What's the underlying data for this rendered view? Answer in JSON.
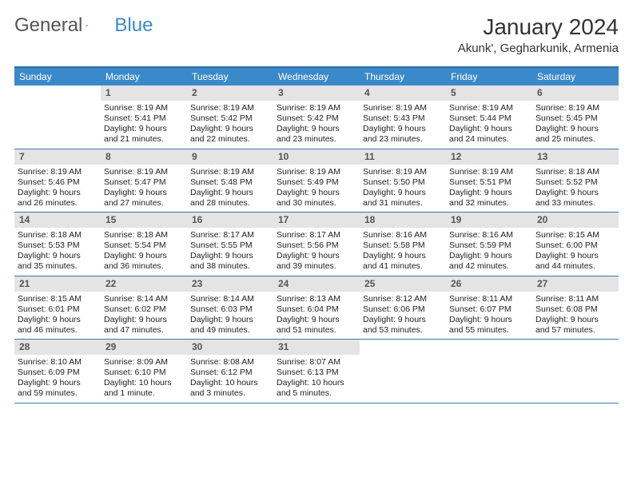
{
  "logo": {
    "word1": "General",
    "word2": "Blue"
  },
  "title": "January 2024",
  "location": "Akunk', Gegharkunik, Armenia",
  "colors": {
    "header_bg": "#3a8ac9",
    "rule": "#3a78a8",
    "daynum_bg": "#e4e4e4",
    "text": "#333333"
  },
  "weekdays": [
    "Sunday",
    "Monday",
    "Tuesday",
    "Wednesday",
    "Thursday",
    "Friday",
    "Saturday"
  ],
  "weeks": [
    [
      null,
      {
        "d": "1",
        "sr": "8:19 AM",
        "ss": "5:41 PM",
        "dl": "9 hours and 21 minutes."
      },
      {
        "d": "2",
        "sr": "8:19 AM",
        "ss": "5:42 PM",
        "dl": "9 hours and 22 minutes."
      },
      {
        "d": "3",
        "sr": "8:19 AM",
        "ss": "5:42 PM",
        "dl": "9 hours and 23 minutes."
      },
      {
        "d": "4",
        "sr": "8:19 AM",
        "ss": "5:43 PM",
        "dl": "9 hours and 23 minutes."
      },
      {
        "d": "5",
        "sr": "8:19 AM",
        "ss": "5:44 PM",
        "dl": "9 hours and 24 minutes."
      },
      {
        "d": "6",
        "sr": "8:19 AM",
        "ss": "5:45 PM",
        "dl": "9 hours and 25 minutes."
      }
    ],
    [
      {
        "d": "7",
        "sr": "8:19 AM",
        "ss": "5:46 PM",
        "dl": "9 hours and 26 minutes."
      },
      {
        "d": "8",
        "sr": "8:19 AM",
        "ss": "5:47 PM",
        "dl": "9 hours and 27 minutes."
      },
      {
        "d": "9",
        "sr": "8:19 AM",
        "ss": "5:48 PM",
        "dl": "9 hours and 28 minutes."
      },
      {
        "d": "10",
        "sr": "8:19 AM",
        "ss": "5:49 PM",
        "dl": "9 hours and 30 minutes."
      },
      {
        "d": "11",
        "sr": "8:19 AM",
        "ss": "5:50 PM",
        "dl": "9 hours and 31 minutes."
      },
      {
        "d": "12",
        "sr": "8:19 AM",
        "ss": "5:51 PM",
        "dl": "9 hours and 32 minutes."
      },
      {
        "d": "13",
        "sr": "8:18 AM",
        "ss": "5:52 PM",
        "dl": "9 hours and 33 minutes."
      }
    ],
    [
      {
        "d": "14",
        "sr": "8:18 AM",
        "ss": "5:53 PM",
        "dl": "9 hours and 35 minutes."
      },
      {
        "d": "15",
        "sr": "8:18 AM",
        "ss": "5:54 PM",
        "dl": "9 hours and 36 minutes."
      },
      {
        "d": "16",
        "sr": "8:17 AM",
        "ss": "5:55 PM",
        "dl": "9 hours and 38 minutes."
      },
      {
        "d": "17",
        "sr": "8:17 AM",
        "ss": "5:56 PM",
        "dl": "9 hours and 39 minutes."
      },
      {
        "d": "18",
        "sr": "8:16 AM",
        "ss": "5:58 PM",
        "dl": "9 hours and 41 minutes."
      },
      {
        "d": "19",
        "sr": "8:16 AM",
        "ss": "5:59 PM",
        "dl": "9 hours and 42 minutes."
      },
      {
        "d": "20",
        "sr": "8:15 AM",
        "ss": "6:00 PM",
        "dl": "9 hours and 44 minutes."
      }
    ],
    [
      {
        "d": "21",
        "sr": "8:15 AM",
        "ss": "6:01 PM",
        "dl": "9 hours and 46 minutes."
      },
      {
        "d": "22",
        "sr": "8:14 AM",
        "ss": "6:02 PM",
        "dl": "9 hours and 47 minutes."
      },
      {
        "d": "23",
        "sr": "8:14 AM",
        "ss": "6:03 PM",
        "dl": "9 hours and 49 minutes."
      },
      {
        "d": "24",
        "sr": "8:13 AM",
        "ss": "6:04 PM",
        "dl": "9 hours and 51 minutes."
      },
      {
        "d": "25",
        "sr": "8:12 AM",
        "ss": "6:06 PM",
        "dl": "9 hours and 53 minutes."
      },
      {
        "d": "26",
        "sr": "8:11 AM",
        "ss": "6:07 PM",
        "dl": "9 hours and 55 minutes."
      },
      {
        "d": "27",
        "sr": "8:11 AM",
        "ss": "6:08 PM",
        "dl": "9 hours and 57 minutes."
      }
    ],
    [
      {
        "d": "28",
        "sr": "8:10 AM",
        "ss": "6:09 PM",
        "dl": "9 hours and 59 minutes."
      },
      {
        "d": "29",
        "sr": "8:09 AM",
        "ss": "6:10 PM",
        "dl": "10 hours and 1 minute."
      },
      {
        "d": "30",
        "sr": "8:08 AM",
        "ss": "6:12 PM",
        "dl": "10 hours and 3 minutes."
      },
      {
        "d": "31",
        "sr": "8:07 AM",
        "ss": "6:13 PM",
        "dl": "10 hours and 5 minutes."
      },
      null,
      null,
      null
    ]
  ]
}
